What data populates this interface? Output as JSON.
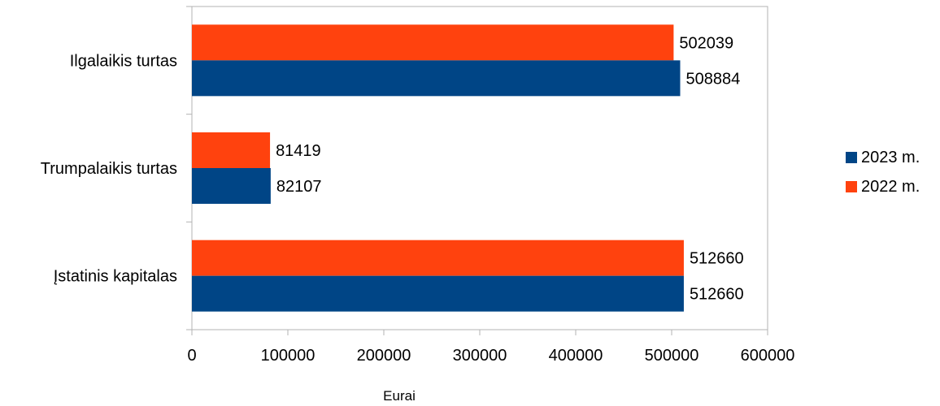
{
  "chart_data": {
    "type": "bar",
    "orientation": "horizontal",
    "categories": [
      "Įstatinis kapitalas",
      "Trumpalaikis turtas",
      "Ilgalaikis turtas"
    ],
    "series": [
      {
        "name": "2023 m.",
        "values": [
          512660,
          82107,
          508884
        ],
        "color": "#004586"
      },
      {
        "name": "2022 m.",
        "values": [
          512660,
          81419,
          502039
        ],
        "color": "#ff420e"
      }
    ],
    "xlabel": "Eurai",
    "ylabel": "",
    "title": "",
    "xlim": [
      0,
      600000
    ],
    "xticks": [
      "0",
      "100000",
      "200000",
      "300000",
      "400000",
      "500000",
      "600000"
    ],
    "grid": false,
    "legend_position": "right",
    "data_labels": true
  }
}
